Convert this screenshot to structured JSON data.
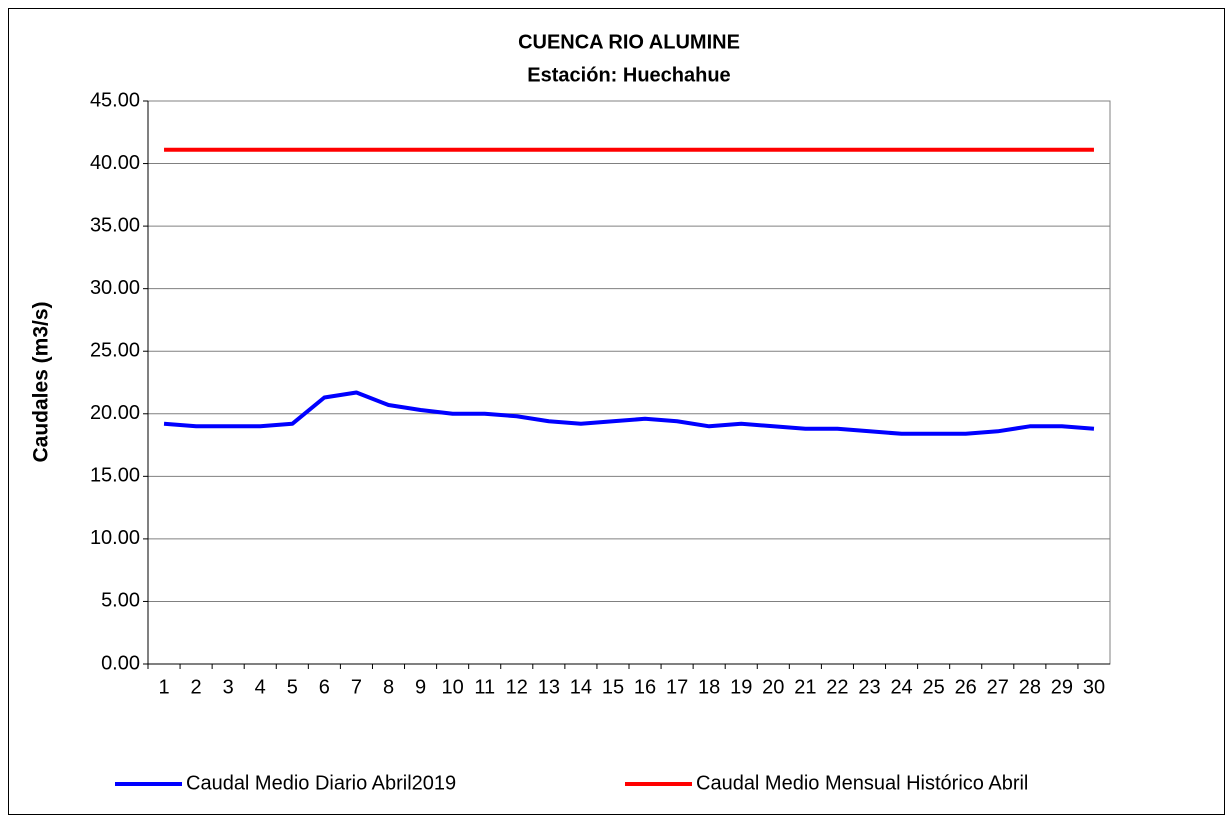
{
  "chart_data": {
    "type": "line",
    "title": "CUENCA RIO ALUMINE",
    "subtitle": "Estación: Huechahue",
    "y_label": "Caudales (m3/s)",
    "categories": [
      "1",
      "2",
      "3",
      "4",
      "5",
      "6",
      "7",
      "8",
      "9",
      "10",
      "11",
      "12",
      "13",
      "14",
      "15",
      "16",
      "17",
      "18",
      "19",
      "20",
      "21",
      "22",
      "23",
      "24",
      "25",
      "26",
      "27",
      "28",
      "29",
      "30"
    ],
    "series": [
      {
        "name": "Caudal Medio Diario Abril2019",
        "color": "#0000ff",
        "values": [
          19.2,
          19.0,
          19.0,
          19.0,
          19.2,
          21.3,
          21.7,
          20.7,
          20.3,
          20.0,
          20.0,
          19.8,
          19.4,
          19.2,
          19.4,
          19.6,
          19.4,
          19.0,
          19.2,
          19.0,
          18.8,
          18.8,
          18.6,
          18.4,
          18.4,
          18.4,
          18.6,
          19.0,
          19.0,
          18.8
        ]
      },
      {
        "name": "Caudal Medio Mensual Histórico Abril",
        "color": "#ff0000",
        "values": [
          41.1,
          41.1,
          41.1,
          41.1,
          41.1,
          41.1,
          41.1,
          41.1,
          41.1,
          41.1,
          41.1,
          41.1,
          41.1,
          41.1,
          41.1,
          41.1,
          41.1,
          41.1,
          41.1,
          41.1,
          41.1,
          41.1,
          41.1,
          41.1,
          41.1,
          41.1,
          41.1,
          41.1,
          41.1,
          41.1
        ]
      }
    ],
    "ylim": [
      0,
      45
    ],
    "yticks": [
      {
        "value": 0,
        "label": "0.00"
      },
      {
        "value": 5,
        "label": "5.00"
      },
      {
        "value": 10,
        "label": "10.00"
      },
      {
        "value": 15,
        "label": "15.00"
      },
      {
        "value": 20,
        "label": "20.00"
      },
      {
        "value": 25,
        "label": "25.00"
      },
      {
        "value": 30,
        "label": "30.00"
      },
      {
        "value": 35,
        "label": "35.00"
      },
      {
        "value": 40,
        "label": "40.00"
      },
      {
        "value": 45,
        "label": "45.00"
      }
    ],
    "grid": true,
    "legend": "bottom"
  }
}
